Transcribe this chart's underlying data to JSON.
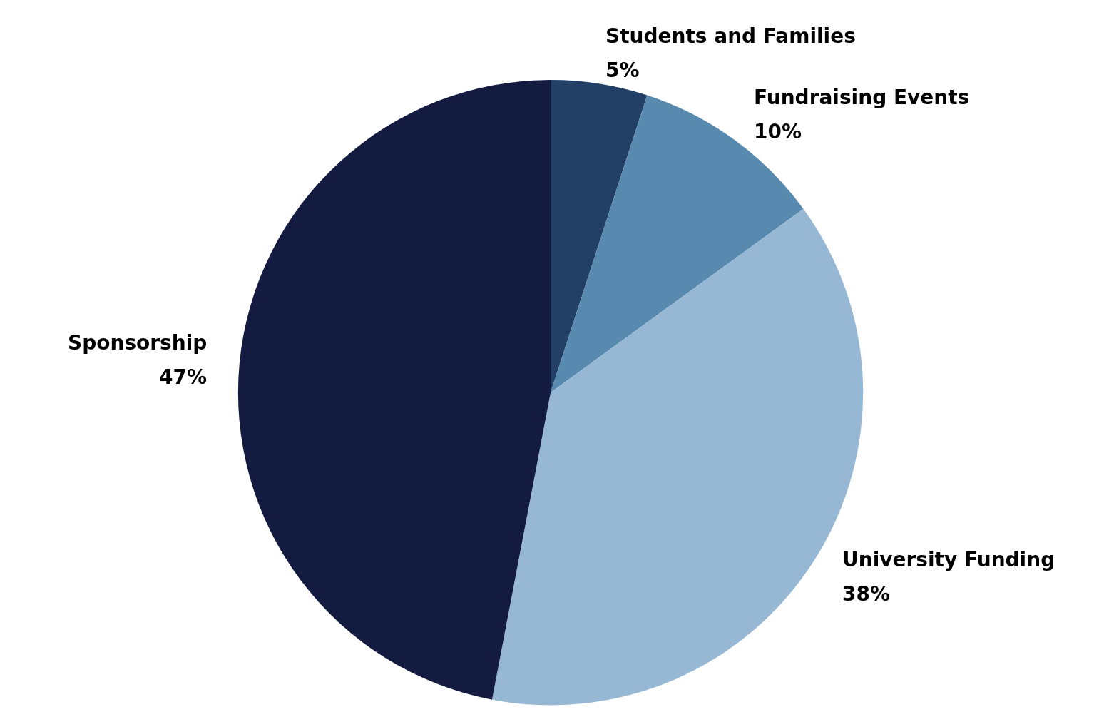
{
  "chart_data": {
    "type": "pie",
    "categories": [
      "Students and Families",
      "Fundraising Events",
      "University Funding",
      "Sponsorship"
    ],
    "values": [
      5,
      10,
      38,
      47
    ],
    "value_labels": [
      "5%",
      "10%",
      "38%",
      "47%"
    ],
    "colors": [
      "#223f66",
      "#5889ae",
      "#96b8d5",
      "#131b40"
    ],
    "legend": false
  }
}
